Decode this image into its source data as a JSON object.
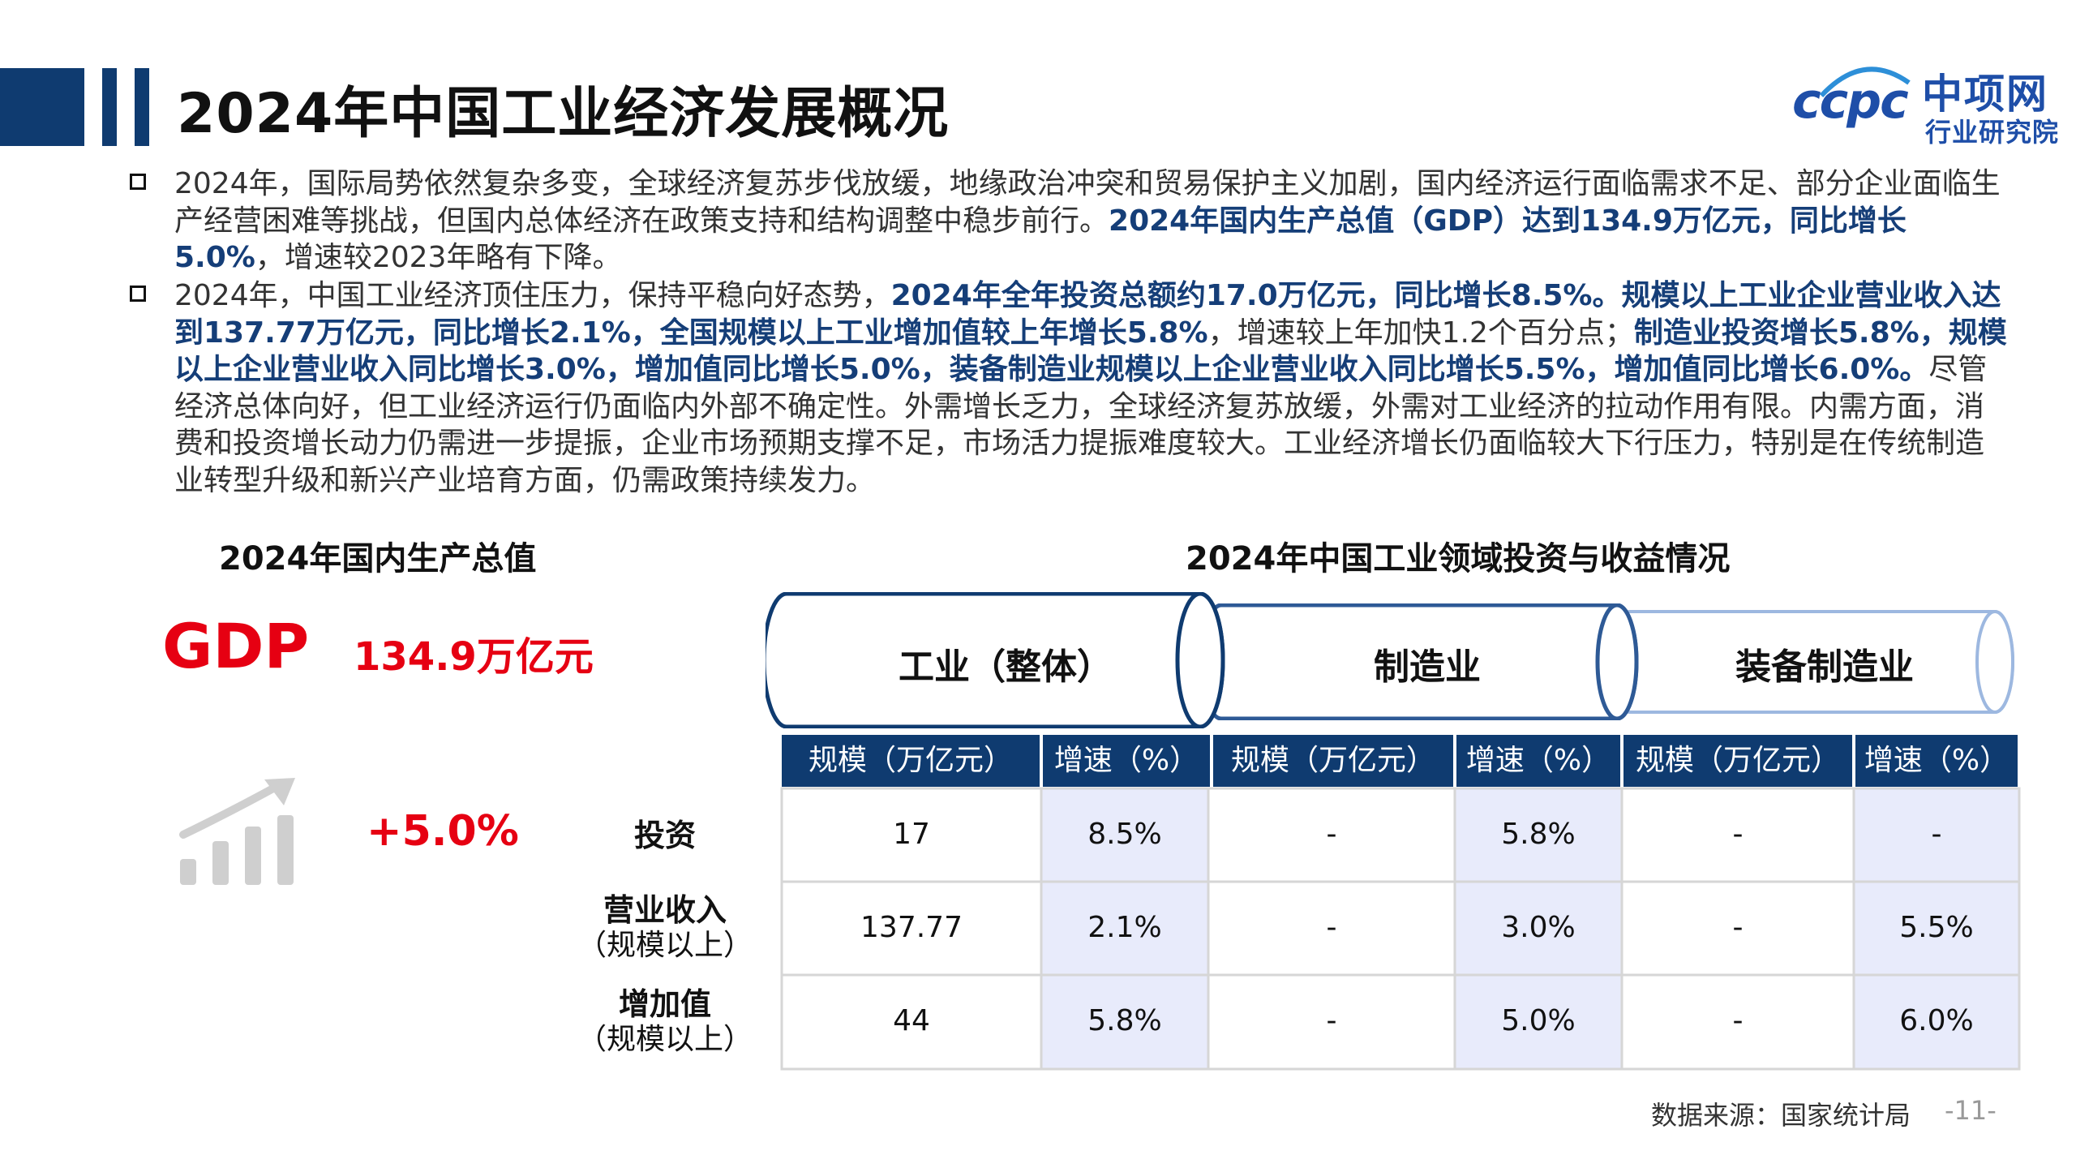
{
  "header": {
    "title": "2024年中国工业经济发展概况"
  },
  "logo": {
    "mark": "ccpc",
    "name": "中项网",
    "sub": "行业研究院"
  },
  "bullets": [
    {
      "segments": [
        {
          "text": "2024年，国际局势依然复杂多变，全球经济复苏步伐放缓，地缘政治冲突和贸易保护主义加剧，国内经济运行面临需求不足、部分企业面临生产经营困难等挑战，但国内总体经济在政策支持和结构调整中稳步前行。",
          "bold": false
        },
        {
          "text": "2024年国内生产总值（GDP）达到134.9万亿元，同比增长5.0%",
          "bold": true
        },
        {
          "text": "，增速较2023年略有下降。",
          "bold": false
        }
      ]
    },
    {
      "segments": [
        {
          "text": "2024年，中国工业经济顶住压力，保持平稳向好态势，",
          "bold": false
        },
        {
          "text": "2024年全年投资总额约17.0万亿元，同比增长8.5%。规模以上工业企业营业收入达到137.77万亿元，同比增长2.1%，全国规模以上工业增加值较上年增长5.8%",
          "bold": true
        },
        {
          "text": "，增速较上年加快1.2个百分点；",
          "bold": false
        },
        {
          "text": "制造业投资增长5.8%，规模以上企业营业收入同比增长3.0%，增加值同比增长5.0%，装备制造业规模以上企业营业收入同比增长5.5%，增加值同比增长6.0%。",
          "bold": true
        },
        {
          "text": "尽管经济总体向好，但工业经济运行仍面临内外部不确定性。外需增长乏力，全球经济复苏放缓，外需对工业经济的拉动作用有限。内需方面，消费和投资增长动力仍需进一步提振，企业市场预期支撑不足，市场活力提振难度较大。工业经济增长仍面临较大下行压力，特别是在传统制造业转型升级和新兴产业培育方面，仍需政策持续发力。",
          "bold": false
        }
      ]
    }
  ],
  "gdp_section": {
    "title": "2024年国内生产总值",
    "label": "GDP",
    "value": "134.9万亿元",
    "growth": "+5.0%"
  },
  "table_section": {
    "title": "2024年中国工业领域投资与收益情况",
    "groups": [
      "工业（整体）",
      "制造业",
      "装备制造业"
    ],
    "headers": [
      "规模（万亿元）",
      "增速（%）",
      "规模（万亿元）",
      "增速（%）",
      "规模（万亿元）",
      "增速（%）"
    ],
    "rows": [
      {
        "label": "投资",
        "sub": "",
        "cells": [
          "17",
          "8.5%",
          "-",
          "5.8%",
          "-",
          "-"
        ]
      },
      {
        "label": "营业收入",
        "sub": "（规模以上）",
        "cells": [
          "137.77",
          "2.1%",
          "-",
          "3.0%",
          "-",
          "5.5%"
        ]
      },
      {
        "label": "增加值",
        "sub": "（规模以上）",
        "cells": [
          "44",
          "5.8%",
          "-",
          "5.0%",
          "-",
          "6.0%"
        ]
      }
    ]
  },
  "footer": {
    "source": "数据来源：国家统计局",
    "page": "-11-"
  },
  "colors": {
    "navy": "#0f3b70",
    "accent_red": "#e60012",
    "bold_text": "#153e78",
    "shade": "#e8ebfb",
    "cylinder_border": "#9db8e0"
  }
}
